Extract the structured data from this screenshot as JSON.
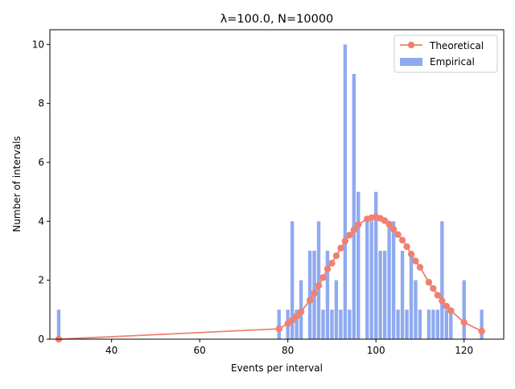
{
  "chart_data": {
    "type": "bar",
    "title": "λ=100.0, N=10000",
    "xlabel": "Events per interval",
    "ylabel": "Number of intervals",
    "xlim": [
      26,
      129
    ],
    "ylim": [
      0,
      10.5
    ],
    "xticks": [
      40,
      60,
      80,
      100,
      120
    ],
    "yticks": [
      0,
      2,
      4,
      6,
      8,
      10
    ],
    "grid": false,
    "legend_position": "top-right",
    "colors": {
      "empirical": "#8faaf0",
      "theoretical": "#f08070"
    },
    "series": [
      {
        "name": "Empirical",
        "type": "bar",
        "x": [
          28,
          78,
          80,
          81,
          82,
          83,
          85,
          86,
          87,
          88,
          89,
          90,
          91,
          92,
          93,
          94,
          95,
          96,
          98,
          99,
          100,
          101,
          102,
          103,
          104,
          105,
          106,
          107,
          108,
          109,
          110,
          112,
          113,
          114,
          115,
          116,
          117,
          120,
          124
        ],
        "values": [
          1,
          1,
          1,
          4,
          1,
          2,
          3,
          3,
          4,
          1,
          3,
          1,
          2,
          1,
          10,
          1,
          9,
          5,
          4,
          4,
          5,
          3,
          3,
          4,
          4,
          1,
          3,
          1,
          3,
          2,
          1,
          1,
          1,
          1,
          4,
          1,
          1,
          2,
          1
        ]
      },
      {
        "name": "Theoretical",
        "type": "line",
        "x": [
          28,
          78,
          80,
          81,
          82,
          83,
          85,
          86,
          87,
          88,
          89,
          90,
          91,
          92,
          93,
          94,
          95,
          96,
          98,
          99,
          100,
          101,
          102,
          103,
          104,
          105,
          106,
          107,
          108,
          109,
          110,
          112,
          113,
          114,
          115,
          116,
          117,
          120,
          124
        ],
        "values": [
          0.0,
          0.35,
          0.53,
          0.64,
          0.78,
          0.93,
          1.32,
          1.56,
          1.82,
          2.09,
          2.38,
          2.58,
          2.83,
          3.09,
          3.33,
          3.53,
          3.71,
          3.89,
          4.08,
          4.12,
          4.15,
          4.1,
          4.02,
          3.9,
          3.73,
          3.55,
          3.36,
          3.14,
          2.89,
          2.65,
          2.44,
          1.93,
          1.72,
          1.49,
          1.3,
          1.12,
          0.97,
          0.57,
          0.27
        ]
      }
    ]
  }
}
